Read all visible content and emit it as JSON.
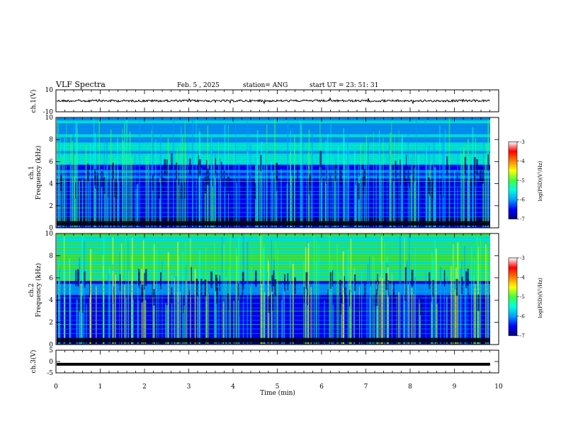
{
  "header": {
    "title": "VLF Spectra",
    "date": "Feb. 5 , 2025",
    "station": "station= ANG",
    "start": "start  UT =   23: 51: 31"
  },
  "chart_data": [
    {
      "type": "line",
      "ylabel": "ch.1(V)",
      "ylim": [
        -10,
        10
      ],
      "yticks": [
        "10",
        "-10"
      ],
      "xlim": [
        0,
        10
      ],
      "trace_level": 0,
      "trace_color": "#000000"
    },
    {
      "type": "heatmap",
      "ylabel": "ch.1\nFrequency (kHz)",
      "ylim": [
        0,
        10
      ],
      "yticks": [
        "0",
        "2",
        "4",
        "6",
        "8",
        "10"
      ],
      "xlim": [
        0,
        10
      ],
      "colorbar": {
        "label": "log(PSD)(V²/Hz)",
        "range": [
          -7,
          -3
        ],
        "ticks": [
          "-3",
          "-4",
          "-5",
          "-6",
          "-7"
        ]
      }
    },
    {
      "type": "heatmap",
      "ylabel": "ch.2\nFrequency (kHz)",
      "ylim": [
        0,
        10
      ],
      "yticks": [
        "0",
        "2",
        "4",
        "6",
        "8",
        "10"
      ],
      "xlim": [
        0,
        10
      ],
      "colorbar": {
        "label": "log(PSD)(V²/Hz)",
        "range": [
          -7,
          -3
        ],
        "ticks": [
          "-3",
          "-4",
          "-5",
          "-6",
          "-7"
        ]
      }
    },
    {
      "type": "line",
      "ylabel": "ch.3(V)",
      "ylim": [
        -5,
        5
      ],
      "yticks": [
        "5",
        "0",
        "-5"
      ],
      "xlim": [
        0,
        10
      ],
      "trace_level": -1.2,
      "trace_color": "#000000",
      "xlabel": "Time  (min)",
      "xticks": [
        "0",
        "1",
        "2",
        "3",
        "4",
        "5",
        "6",
        "7",
        "8",
        "9",
        "10"
      ]
    }
  ],
  "labels": {
    "p1_ylabel": "ch.1(V)",
    "p2_ylabel_a": "ch.1",
    "p2_ylabel_b": "Frequency (kHz)",
    "p3_ylabel_a": "ch.2",
    "p3_ylabel_b": "Frequency (kHz)",
    "p4_ylabel": "ch.3(V)",
    "cb_label": "log(PSD)(V²/Hz)"
  },
  "colors": {
    "colormap": [
      "#00007a",
      "#0000ff",
      "#00a0ff",
      "#00ffe0",
      "#40ff40",
      "#ffff00",
      "#ff8000",
      "#ff0000",
      "#ffffff"
    ]
  }
}
